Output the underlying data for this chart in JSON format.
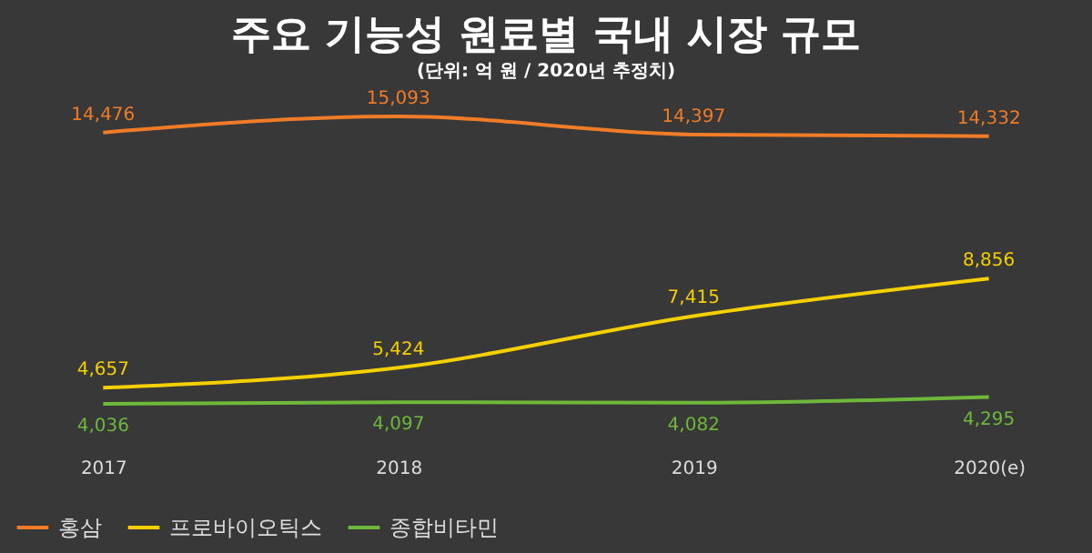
{
  "chart_data": {
    "type": "line",
    "title": "주요 기능성 원료별 국내 시장 규모",
    "subtitle": "(단위: 억 원 / 2020년 추정치)",
    "categories": [
      "2017",
      "2018",
      "2019",
      "2020(e)"
    ],
    "series": [
      {
        "name": "홍삼",
        "color": "#f07c28",
        "values": [
          14476,
          15093,
          14397,
          14332
        ],
        "value_labels": [
          "14,476",
          "15,093",
          "14,397",
          "14,332"
        ]
      },
      {
        "name": "프로바이오틱스",
        "color": "#f5d000",
        "values": [
          4657,
          5424,
          7415,
          8856
        ],
        "value_labels": [
          "4,657",
          "5,424",
          "7,415",
          "8,856"
        ]
      },
      {
        "name": "종합비타민",
        "color": "#6fb83c",
        "values": [
          4036,
          4097,
          4082,
          4295
        ],
        "value_labels": [
          "4,036",
          "4,097",
          "4,082",
          "4,295"
        ]
      }
    ],
    "tick_labels": "x",
    "legend": "bottom",
    "marker": "none",
    "line_style": "solid"
  }
}
